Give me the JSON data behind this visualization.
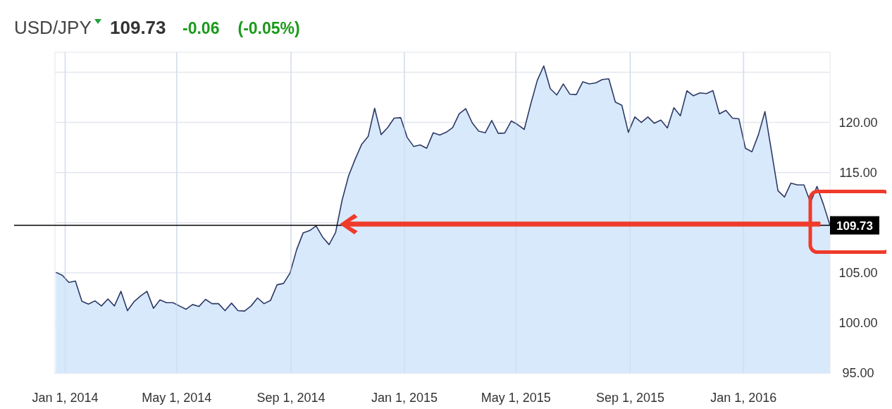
{
  "chart_data": {
    "type": "area",
    "title": "USD/JPY",
    "annotations": [
      "109.73",
      "-0.06",
      "(-0.05%)"
    ],
    "x": [
      "2013-12-22",
      "2013-12-29",
      "2014-01-05",
      "2014-01-12",
      "2014-01-19",
      "2014-01-26",
      "2014-02-02",
      "2014-02-09",
      "2014-02-16",
      "2014-02-23",
      "2014-03-02",
      "2014-03-09",
      "2014-03-16",
      "2014-03-23",
      "2014-03-30",
      "2014-04-06",
      "2014-04-13",
      "2014-04-20",
      "2014-04-27",
      "2014-05-04",
      "2014-05-11",
      "2014-05-18",
      "2014-05-25",
      "2014-06-01",
      "2014-06-08",
      "2014-06-15",
      "2014-06-22",
      "2014-06-29",
      "2014-07-06",
      "2014-07-13",
      "2014-07-20",
      "2014-07-27",
      "2014-08-03",
      "2014-08-10",
      "2014-08-17",
      "2014-08-24",
      "2014-08-31",
      "2014-09-07",
      "2014-09-14",
      "2014-09-21",
      "2014-09-28",
      "2014-10-05",
      "2014-10-12",
      "2014-10-19",
      "2014-10-26",
      "2014-11-02",
      "2014-11-09",
      "2014-11-16",
      "2014-11-23",
      "2014-11-30",
      "2014-12-07",
      "2014-12-14",
      "2014-12-21",
      "2014-12-28",
      "2015-01-04",
      "2015-01-11",
      "2015-01-18",
      "2015-01-25",
      "2015-02-01",
      "2015-02-08",
      "2015-02-15",
      "2015-02-22",
      "2015-03-01",
      "2015-03-08",
      "2015-03-15",
      "2015-03-22",
      "2015-03-29",
      "2015-04-05",
      "2015-04-12",
      "2015-04-19",
      "2015-04-26",
      "2015-05-03",
      "2015-05-10",
      "2015-05-17",
      "2015-05-24",
      "2015-05-31",
      "2015-06-07",
      "2015-06-14",
      "2015-06-21",
      "2015-06-28",
      "2015-07-05",
      "2015-07-12",
      "2015-07-19",
      "2015-07-26",
      "2015-08-02",
      "2015-08-09",
      "2015-08-16",
      "2015-08-23",
      "2015-08-30",
      "2015-09-06",
      "2015-09-13",
      "2015-09-20",
      "2015-09-27",
      "2015-10-04",
      "2015-10-11",
      "2015-10-18",
      "2015-10-25",
      "2015-11-01",
      "2015-11-08",
      "2015-11-15",
      "2015-11-22",
      "2015-11-29",
      "2015-12-06",
      "2015-12-13",
      "2015-12-20",
      "2015-12-27",
      "2016-01-03",
      "2016-01-10",
      "2016-01-17",
      "2016-01-24",
      "2016-01-31",
      "2016-02-07",
      "2016-02-14",
      "2016-02-21",
      "2016-02-28",
      "2016-03-06",
      "2016-03-13",
      "2016-03-20",
      "2016-03-27",
      "2016-04-03"
    ],
    "series": [
      {
        "color": "#2e3a66",
        "values": [
          105.05,
          104.74,
          104.04,
          104.18,
          102.16,
          101.88,
          102.2,
          101.69,
          102.39,
          101.69,
          103.15,
          101.22,
          102.11,
          102.68,
          103.15,
          101.46,
          102.3,
          102.02,
          102.02,
          101.69,
          101.36,
          101.83,
          101.64,
          102.35,
          101.92,
          101.92,
          101.22,
          101.97,
          101.22,
          101.18,
          101.69,
          102.49,
          101.92,
          102.25,
          103.8,
          103.94,
          104.98,
          107.28,
          108.97,
          109.2,
          109.67,
          108.56,
          107.81,
          109.03,
          112.25,
          114.67,
          116.32,
          117.8,
          118.59,
          121.41,
          118.78,
          119.48,
          120.42,
          120.47,
          118.5,
          117.6,
          117.75,
          117.42,
          118.96,
          118.73,
          119.01,
          119.48,
          120.85,
          121.36,
          119.95,
          119.13,
          118.96,
          120.19,
          118.9,
          118.94,
          120.14,
          119.77,
          119.3,
          121.83,
          124.18,
          125.63,
          123.36,
          122.73,
          123.83,
          122.82,
          122.77,
          124.05,
          123.83,
          123.94,
          124.27,
          124.34,
          122.02,
          121.71,
          119.01,
          120.54,
          119.99,
          120.54,
          119.91,
          120.23,
          119.44,
          121.46,
          120.66,
          123.15,
          122.65,
          122.94,
          122.87,
          123.17,
          120.85,
          121.2,
          120.42,
          120.35,
          117.42,
          117.07,
          118.78,
          121.08,
          117.14,
          113.19,
          112.56,
          113.94,
          113.76,
          113.76,
          112.0,
          113.61,
          111.8,
          109.73
        ]
      }
    ],
    "xlim": [
      "2013-12-21",
      "2016-04-03"
    ],
    "xticks": [
      {
        "value": "2014-01-01",
        "label": "Jan 1, 2014"
      },
      {
        "value": "2014-05-01",
        "label": "May 1, 2014"
      },
      {
        "value": "2014-09-01",
        "label": "Sep 1, 2014"
      },
      {
        "value": "2015-01-01",
        "label": "Jan 1, 2015"
      },
      {
        "value": "2015-05-01",
        "label": "May 1, 2015"
      },
      {
        "value": "2015-09-01",
        "label": "Sep 1, 2015"
      },
      {
        "value": "2016-01-01",
        "label": "Jan 1, 2016"
      }
    ],
    "ylim": [
      95,
      127
    ],
    "yticks": [
      {
        "value": 95,
        "label": "95.00"
      },
      {
        "value": 100,
        "label": "100.00"
      },
      {
        "value": 105,
        "label": "105.00"
      },
      {
        "value": 110,
        "label": null
      },
      {
        "value": 115,
        "label": "115.00"
      },
      {
        "value": 120,
        "label": "120.00"
      },
      {
        "value": 125,
        "label": null
      }
    ],
    "ref_lines": [
      {
        "axis": "y",
        "value": 109.73,
        "label": "109.73",
        "color": "#000000"
      }
    ],
    "grid": true
  }
}
